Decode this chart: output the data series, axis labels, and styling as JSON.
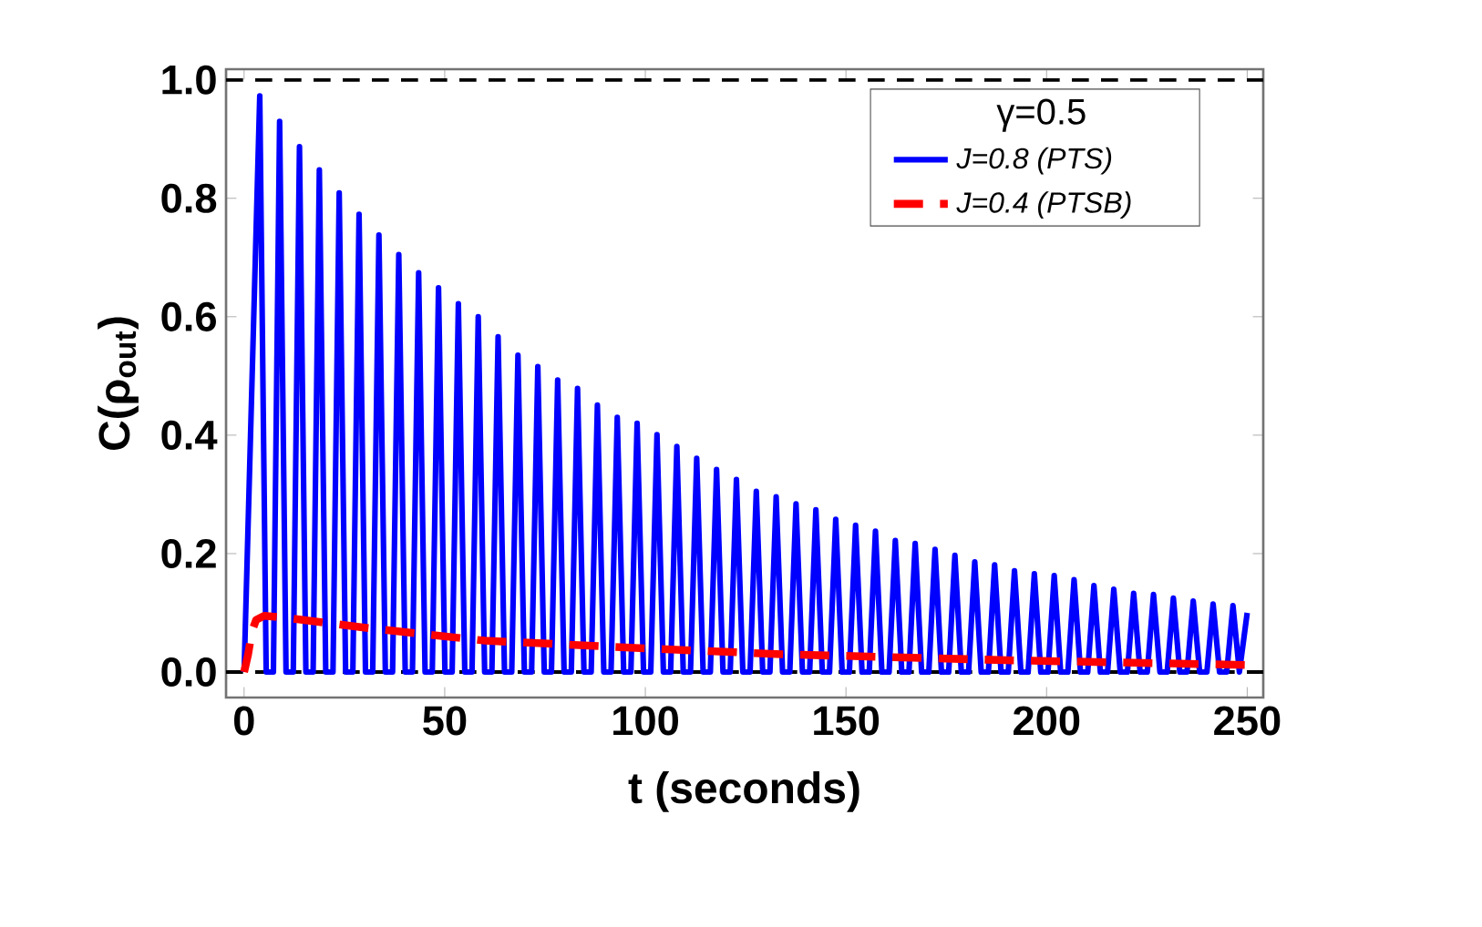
{
  "chart_data": {
    "type": "line",
    "xlabel": "t (seconds)",
    "ylabel": "C(ρ$_{out}$)",
    "legend_title": "γ=0.5",
    "xlim": [
      -4.5,
      254
    ],
    "ylim": [
      -0.043,
      1.018
    ],
    "xticks": [
      0,
      50,
      100,
      150,
      200,
      250
    ],
    "yticks": [
      {
        "value": 0,
        "label": "0.0"
      },
      {
        "value": 0.2,
        "label": "0.2"
      },
      {
        "value": 0.4,
        "label": "0.4"
      },
      {
        "value": 0.6,
        "label": "0.6"
      },
      {
        "value": 0.8,
        "label": "0.8"
      },
      {
        "value": 1.0,
        "label": "1.0"
      }
    ],
    "grid": false,
    "legend": "top right",
    "ref_lines": [
      {
        "axis": "y",
        "value": 1.0,
        "color": "#000000",
        "line_style": "dashed"
      },
      {
        "axis": "y",
        "value": 0.0,
        "color": "#000000",
        "line_style": "dashed"
      }
    ],
    "series": [
      {
        "name": "*J=0.8* (*PTS*)",
        "color": "#0000ff",
        "line_style": "solid",
        "x": [
          0,
          3.9,
          5.5,
          7.3,
          8.85,
          10.45,
          12.25,
          13.8,
          15.4,
          17.2,
          18.75,
          20.35,
          22.15,
          23.7,
          25.3,
          27.1,
          28.65,
          30.25,
          32.05,
          33.6,
          35.2,
          37.0,
          38.55,
          40.15,
          41.95,
          43.5,
          45.1,
          46.9,
          48.45,
          50.05,
          51.85,
          53.4,
          55.0,
          56.8,
          58.35,
          59.95,
          61.75,
          63.3,
          64.9,
          66.7,
          68.25,
          69.85,
          71.65,
          73.2,
          74.8,
          76.6,
          78.15,
          79.75,
          81.55,
          83.1,
          84.7,
          86.5,
          88.05,
          89.65,
          91.45,
          93.0,
          94.6,
          96.4,
          97.95,
          99.55,
          101.35,
          102.9,
          104.5,
          106.3,
          107.85,
          109.45,
          111.25,
          112.8,
          114.4,
          116.2,
          117.75,
          119.35,
          121.15,
          122.7,
          124.3,
          126.1,
          127.65,
          129.25,
          131.05,
          132.6,
          134.2,
          136.0,
          137.55,
          139.15,
          140.95,
          142.5,
          144.1,
          145.9,
          147.45,
          149.05,
          150.85,
          152.4,
          154.0,
          155.8,
          157.35,
          158.95,
          160.75,
          162.3,
          163.9,
          165.7,
          167.25,
          168.85,
          170.65,
          172.2,
          173.8,
          175.6,
          177.15,
          178.75,
          180.55,
          182.1,
          183.7,
          185.5,
          187.05,
          188.65,
          190.45,
          192.0,
          193.6,
          195.4,
          196.95,
          198.55,
          200.35,
          201.9,
          203.5,
          205.3,
          206.85,
          208.45,
          210.25,
          211.8,
          213.4,
          215.2,
          216.75,
          218.35,
          220.15,
          221.7,
          223.3,
          225.1,
          226.65,
          228.25,
          230.05,
          231.6,
          233.2,
          235.0,
          236.55,
          238.15,
          239.95,
          241.5,
          243.1,
          244.9,
          246.45,
          248.05,
          250
        ],
        "values": [
          0,
          0.973,
          0,
          0,
          0.93,
          0,
          0,
          0.887,
          0,
          0,
          0.848,
          0,
          0,
          0.809,
          0,
          0,
          0.773,
          0,
          0,
          0.738,
          0,
          0,
          0.705,
          0,
          0,
          0.674,
          0,
          0,
          0.649,
          0,
          0,
          0.622,
          0,
          0,
          0.6,
          0,
          0,
          0.566,
          0,
          0,
          0.535,
          0,
          0,
          0.516,
          0,
          0,
          0.493,
          0,
          0,
          0.479,
          0,
          0,
          0.451,
          0,
          0,
          0.43,
          0,
          0,
          0.42,
          0,
          0,
          0.401,
          0,
          0,
          0.381,
          0,
          0,
          0.361,
          0,
          0,
          0.342,
          0,
          0,
          0.325,
          0,
          0,
          0.305,
          0,
          0,
          0.296,
          0,
          0,
          0.284,
          0,
          0,
          0.274,
          0,
          0,
          0.258,
          0,
          0,
          0.248,
          0,
          0,
          0.238,
          0,
          0,
          0.222,
          0,
          0,
          0.217,
          0,
          0,
          0.207,
          0,
          0,
          0.197,
          0,
          0,
          0.186,
          0,
          0,
          0.181,
          0,
          0,
          0.171,
          0,
          0,
          0.166,
          0,
          0,
          0.163,
          0,
          0,
          0.156,
          0,
          0,
          0.146,
          0,
          0,
          0.14,
          0,
          0,
          0.133,
          0,
          0,
          0.131,
          0,
          0,
          0.125,
          0,
          0,
          0.12,
          0,
          0,
          0.115,
          0,
          0,
          0.112,
          0,
          0.1
        ]
      },
      {
        "name": "*J=0.4* (*PTSB*)",
        "color": "#ff0000",
        "line_style": "dashed",
        "x": [
          0,
          1,
          2,
          3,
          5,
          10,
          30,
          60,
          100,
          134,
          190,
          250
        ],
        "values": [
          0,
          0.03,
          0.07,
          0.088,
          0.095,
          0.092,
          0.075,
          0.053,
          0.04,
          0.03,
          0.02,
          0.012
        ]
      }
    ]
  }
}
